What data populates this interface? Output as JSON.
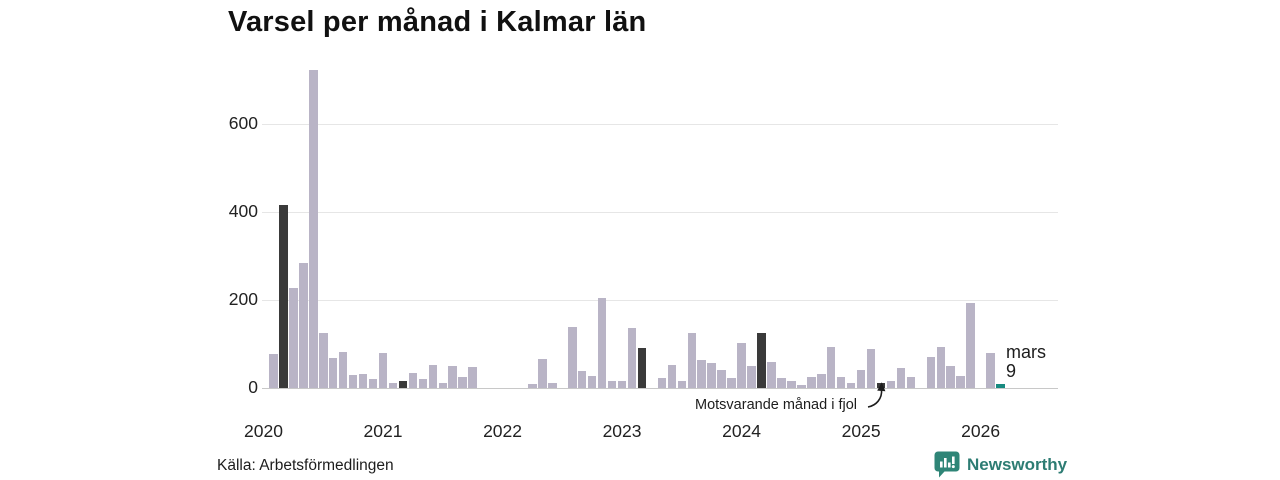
{
  "title": "Varsel per månad i Kalmar län",
  "annotation": {
    "label": "Motsvarande månad i fjol"
  },
  "current_point_label": {
    "month": "mars",
    "value": "9"
  },
  "footer": {
    "source": "Källa: Arbetsförmedlingen",
    "brand": "Newsworthy"
  },
  "icons": {
    "brand_logo": "newsworthy-speech-bubble-bar-chart-icon",
    "annotation_arrow": "curved-arrow-up-icon"
  },
  "colors": {
    "bar_light": "#b9b4c6",
    "bar_dark": "#3a3a3a",
    "bar_current": "#178a80",
    "brand_teal": "#2d7c73",
    "grid": "#e6e6e6",
    "axis_line": "#c8c8c8",
    "text": "#222222"
  },
  "chart_data": {
    "type": "bar",
    "title": "Varsel per månad i Kalmar län",
    "xlabel": "",
    "ylabel": "",
    "ylim": [
      0,
      750
    ],
    "yticks": [
      0,
      200,
      400,
      600
    ],
    "x_tick_labels": [
      "2020",
      "2021",
      "2022",
      "2023",
      "2024",
      "2025",
      "2026"
    ],
    "grid": "horizontal",
    "legend": "none",
    "highlight_month_index": 2,
    "highlight_note": "dark bars mark mars (March) of each year; teal bar is the current month",
    "series": [
      {
        "year": "2020",
        "values": [
          0,
          78,
          415,
          227,
          283,
          723,
          125,
          68,
          81,
          30,
          32,
          21
        ]
      },
      {
        "year": "2021",
        "values": [
          80,
          11,
          17,
          35,
          20,
          53,
          12,
          50,
          26,
          47,
          0,
          0
        ]
      },
      {
        "year": "2022",
        "values": [
          0,
          0,
          0,
          10,
          65,
          11,
          0,
          138,
          38,
          28,
          205,
          15
        ]
      },
      {
        "year": "2023",
        "values": [
          15,
          136,
          90,
          0,
          23,
          53,
          17,
          126,
          64,
          57,
          42,
          23
        ]
      },
      {
        "year": "2024",
        "values": [
          102,
          51,
          126,
          60,
          23,
          17,
          7,
          25,
          32,
          94,
          25,
          11
        ]
      },
      {
        "year": "2025",
        "values": [
          40,
          88,
          12,
          15,
          45,
          25,
          0,
          70,
          93,
          51,
          28,
          193
        ]
      },
      {
        "year": "2026",
        "values": [
          0,
          79,
          9
        ]
      }
    ],
    "current": {
      "year": "2026",
      "month_index": 2,
      "label": "mars",
      "value": 9
    },
    "annotated_bar": {
      "year": "2025",
      "month_index": 2,
      "note": "Motsvarande månad i fjol"
    }
  }
}
